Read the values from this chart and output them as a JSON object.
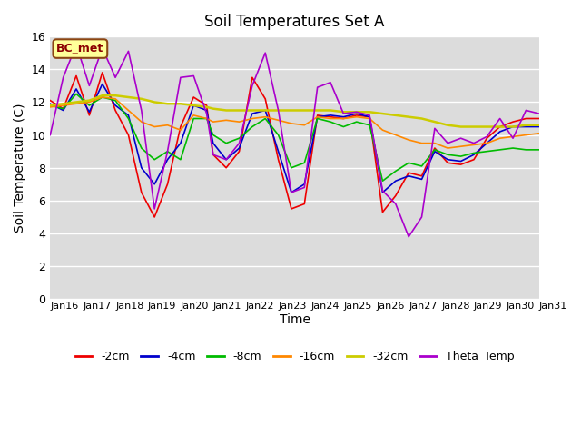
{
  "title": "Soil Temperatures Set A",
  "xlabel": "Time",
  "ylabel": "Soil Temperature (C)",
  "ylim": [
    0,
    16
  ],
  "yticks": [
    0,
    2,
    4,
    6,
    8,
    10,
    12,
    14,
    16
  ],
  "background_color": "#dcdcdc",
  "annotation_text": "BC_met",
  "annotation_bg": "#ffff99",
  "annotation_border": "#8B4513",
  "annotation_text_color": "#8B0000",
  "series_order": [
    "-2cm",
    "-4cm",
    "-8cm",
    "-16cm",
    "-32cm",
    "Theta_Temp"
  ],
  "series": {
    "-2cm": {
      "color": "#ee0000",
      "lw": 1.2
    },
    "-4cm": {
      "color": "#0000cc",
      "lw": 1.2
    },
    "-8cm": {
      "color": "#00bb00",
      "lw": 1.2
    },
    "-16cm": {
      "color": "#ff8800",
      "lw": 1.2
    },
    "-32cm": {
      "color": "#cccc00",
      "lw": 1.8
    },
    "Theta_Temp": {
      "color": "#aa00cc",
      "lw": 1.2
    }
  },
  "x_labels": [
    "Jan 16",
    "Jan 17",
    "Jan 18",
    "Jan 19",
    "Jan 20",
    "Jan 21",
    "Jan 22",
    "Jan 23",
    "Jan 24",
    "Jan 25",
    "Jan 26",
    "Jan 27",
    "Jan 28",
    "Jan 29",
    "Jan 30",
    "Jan 31"
  ],
  "n_days": 15,
  "data_x": [
    0.0,
    0.4,
    0.8,
    1.2,
    1.6,
    2.0,
    2.4,
    2.8,
    3.2,
    3.6,
    4.0,
    4.4,
    4.8,
    5.0,
    5.4,
    5.8,
    6.2,
    6.6,
    7.0,
    7.4,
    7.8,
    8.2,
    8.6,
    9.0,
    9.4,
    9.8,
    10.2,
    10.6,
    11.0,
    11.4,
    11.8,
    12.2,
    12.6,
    13.0,
    13.4,
    13.8,
    14.2,
    14.6,
    15.0
  ],
  "data": {
    "-2cm": [
      12.1,
      11.6,
      13.6,
      11.2,
      13.8,
      11.5,
      10.0,
      6.5,
      5.0,
      7.0,
      10.5,
      12.3,
      11.8,
      8.8,
      8.0,
      9.0,
      13.5,
      12.2,
      8.5,
      5.5,
      5.8,
      11.2,
      11.1,
      11.0,
      11.2,
      11.1,
      5.3,
      6.3,
      7.7,
      7.5,
      9.2,
      8.3,
      8.2,
      8.5,
      9.8,
      10.5,
      10.8,
      11.0,
      11.0
    ],
    "-4cm": [
      11.9,
      11.5,
      12.8,
      11.4,
      13.1,
      11.8,
      11.2,
      8.0,
      7.0,
      8.5,
      9.5,
      11.8,
      11.5,
      9.5,
      8.5,
      9.2,
      11.3,
      11.5,
      9.0,
      6.5,
      7.0,
      11.1,
      11.2,
      11.1,
      11.3,
      11.1,
      6.5,
      7.2,
      7.5,
      7.3,
      9.0,
      8.5,
      8.4,
      8.8,
      9.5,
      10.2,
      10.5,
      10.5,
      10.5
    ],
    "-8cm": [
      11.8,
      11.6,
      12.5,
      11.8,
      12.3,
      12.1,
      11.0,
      9.2,
      8.5,
      9.0,
      8.5,
      11.0,
      11.0,
      10.0,
      9.5,
      9.8,
      10.5,
      11.0,
      10.0,
      8.0,
      8.3,
      11.0,
      10.8,
      10.5,
      10.8,
      10.6,
      7.2,
      7.8,
      8.3,
      8.1,
      9.1,
      8.8,
      8.7,
      8.9,
      9.0,
      9.1,
      9.2,
      9.1,
      9.1
    ],
    "-16cm": [
      11.7,
      11.8,
      11.9,
      12.0,
      12.3,
      12.2,
      11.5,
      10.8,
      10.5,
      10.6,
      10.3,
      11.2,
      11.0,
      10.8,
      10.9,
      10.8,
      11.0,
      11.1,
      10.9,
      10.7,
      10.6,
      11.1,
      11.0,
      11.0,
      11.1,
      11.0,
      10.3,
      10.0,
      9.7,
      9.5,
      9.5,
      9.2,
      9.3,
      9.4,
      9.5,
      9.8,
      9.9,
      10.0,
      10.1
    ],
    "-32cm": [
      11.8,
      11.9,
      12.0,
      12.1,
      12.4,
      12.4,
      12.3,
      12.2,
      12.0,
      11.9,
      11.9,
      11.8,
      11.7,
      11.6,
      11.5,
      11.5,
      11.5,
      11.5,
      11.5,
      11.5,
      11.5,
      11.5,
      11.5,
      11.4,
      11.4,
      11.4,
      11.3,
      11.2,
      11.1,
      11.0,
      10.8,
      10.6,
      10.5,
      10.5,
      10.5,
      10.5,
      10.5,
      10.6,
      10.6
    ],
    "Theta_Temp": [
      10.0,
      13.5,
      15.5,
      13.0,
      15.3,
      13.5,
      15.1,
      11.5,
      5.5,
      9.0,
      13.5,
      13.6,
      11.3,
      8.8,
      8.5,
      9.5,
      13.0,
      15.0,
      11.5,
      6.5,
      6.8,
      12.9,
      13.2,
      11.3,
      11.4,
      11.2,
      6.6,
      5.8,
      3.8,
      5.0,
      10.4,
      9.5,
      9.8,
      9.5,
      9.9,
      11.0,
      9.8,
      11.5,
      11.3
    ]
  }
}
